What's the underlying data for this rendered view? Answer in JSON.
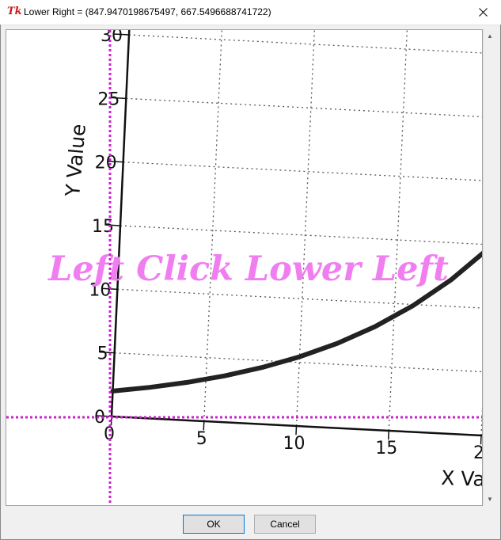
{
  "window": {
    "title": "Lower Right = (847.9470198675497, 667.5496688741722)",
    "icon": "tk-feather-icon",
    "icon_glyph": "Tk"
  },
  "plot": {
    "ylabel": "Y Value",
    "xlabel": "X Va",
    "y_ticks": [
      "30",
      "25",
      "20",
      "15",
      "10",
      "5",
      "0"
    ],
    "x_ticks": [
      "0",
      "5",
      "10",
      "15",
      "2"
    ],
    "overlay_text": "Left Click Lower Left",
    "overlay_color": "#f07ef0",
    "crosshair_color": "#cc22cc",
    "curve_color": "#222222"
  },
  "chart_data": {
    "type": "line",
    "xlabel": "X Value",
    "ylabel": "Y Value",
    "xlim": [
      0,
      20
    ],
    "ylim": [
      0,
      30
    ],
    "grid": true,
    "series": [
      {
        "x": [
          0,
          2,
          4,
          6,
          8,
          10,
          12,
          14,
          16,
          18,
          20
        ],
        "values": [
          2.0,
          2.44,
          2.98,
          3.64,
          4.45,
          5.44,
          6.64,
          8.11,
          9.91,
          12.1,
          14.78
        ]
      }
    ]
  },
  "buttons": {
    "ok": "OK",
    "cancel": "Cancel"
  }
}
